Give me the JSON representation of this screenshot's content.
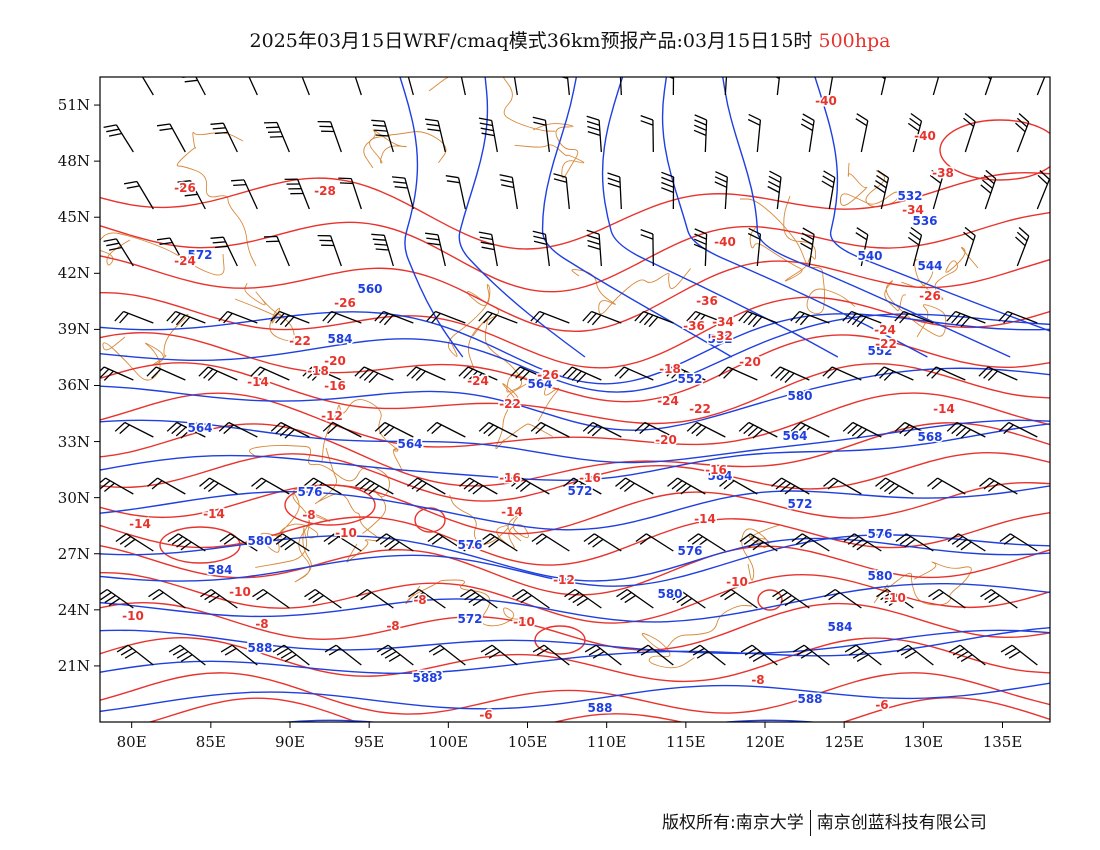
{
  "title": {
    "main": "2025年03月15日WRF/cmaq模式36km预报产品:03月15日15时",
    "level": "500hpa"
  },
  "map": {
    "lat_ticks": [
      "51N",
      "48N",
      "45N",
      "42N",
      "39N",
      "36N",
      "33N",
      "30N",
      "27N",
      "24N",
      "21N"
    ],
    "lat_values": [
      51,
      48,
      45,
      42,
      39,
      36,
      33,
      30,
      27,
      24,
      21
    ],
    "lon_ticks": [
      "80E",
      "85E",
      "90E",
      "95E",
      "100E",
      "105E",
      "110E",
      "115E",
      "120E",
      "125E",
      "130E",
      "135E"
    ],
    "lon_values": [
      80,
      85,
      90,
      95,
      100,
      105,
      110,
      115,
      120,
      125,
      130,
      135
    ],
    "extent": {
      "lon_min": 78,
      "lon_max": 138,
      "lat_min": 18,
      "lat_max": 52.5
    },
    "colors": {
      "height": "#1f3fe0",
      "temperature": "#e8332d",
      "border": "#d8893a",
      "wind": "#000000"
    },
    "height_contours_labels": [
      "584",
      "588",
      "572",
      "564",
      "560",
      "544",
      "540",
      "536",
      "532",
      "576",
      "580",
      "552",
      "568"
    ],
    "temperature_labels": [
      "-26",
      "-24",
      "-28",
      "-22",
      "-20",
      "-18",
      "-16",
      "-14",
      "-12",
      "-10",
      "-8",
      "-6",
      "-36",
      "-34",
      "-32",
      "-38",
      "-40"
    ]
  },
  "footer": {
    "copyright": "版权所有:南京大学",
    "company": "南京创蓝科技有限公司"
  }
}
